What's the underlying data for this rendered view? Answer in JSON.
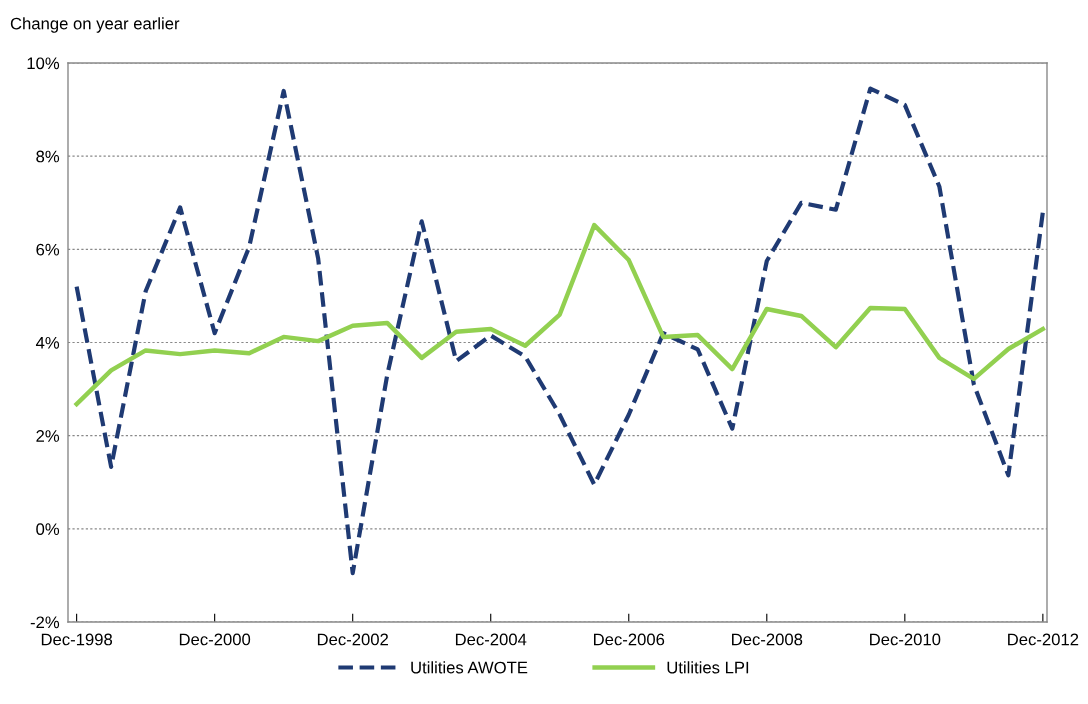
{
  "chart_data": {
    "type": "line",
    "ylabel": "Change on year earlier",
    "categories": [
      "Dec-1998",
      null,
      null,
      null,
      "Dec-2000",
      null,
      null,
      null,
      "Dec-2002",
      null,
      null,
      null,
      "Dec-2004",
      null,
      null,
      null,
      "Dec-2006",
      null,
      null,
      null,
      "Dec-2008",
      null,
      null,
      null,
      "Dec-2010",
      null,
      null,
      null,
      "Dec-2012"
    ],
    "series": [
      {
        "name": "Utilities AWOTE",
        "color": "#1f3a73",
        "line_style": "dashed",
        "values": [
          5.2,
          1.33,
          5.1,
          6.9,
          4.2,
          6.05,
          9.4,
          5.8,
          -0.95,
          3.3,
          6.6,
          3.6,
          4.15,
          3.7,
          2.45,
          0.95,
          2.45,
          4.2,
          3.85,
          2.15,
          5.75,
          7.0,
          6.85,
          9.45,
          9.1,
          7.35,
          3.1,
          1.15,
          6.8
        ]
      },
      {
        "name": "Utilities LPI",
        "color": "#92d050",
        "line_style": "solid",
        "values": [
          2.68,
          3.4,
          3.83,
          3.75,
          3.83,
          3.77,
          4.12,
          4.03,
          4.36,
          4.42,
          3.67,
          4.23,
          4.29,
          3.93,
          4.6,
          6.52,
          5.77,
          4.12,
          4.16,
          3.43,
          4.72,
          4.57,
          3.9,
          4.74,
          4.72,
          3.67,
          3.22,
          3.86,
          4.29
        ]
      }
    ],
    "ylim": [
      -2,
      10
    ],
    "yticks": [
      {
        "value": -2,
        "label": "-2%"
      },
      {
        "value": 0,
        "label": "0%"
      },
      {
        "value": 2,
        "label": "2%"
      },
      {
        "value": 4,
        "label": "4%"
      },
      {
        "value": 6,
        "label": "6%"
      },
      {
        "value": 8,
        "label": "8%"
      },
      {
        "value": 10,
        "label": "10%"
      }
    ],
    "grid": "y",
    "legend": "bottom",
    "marker": "none"
  }
}
